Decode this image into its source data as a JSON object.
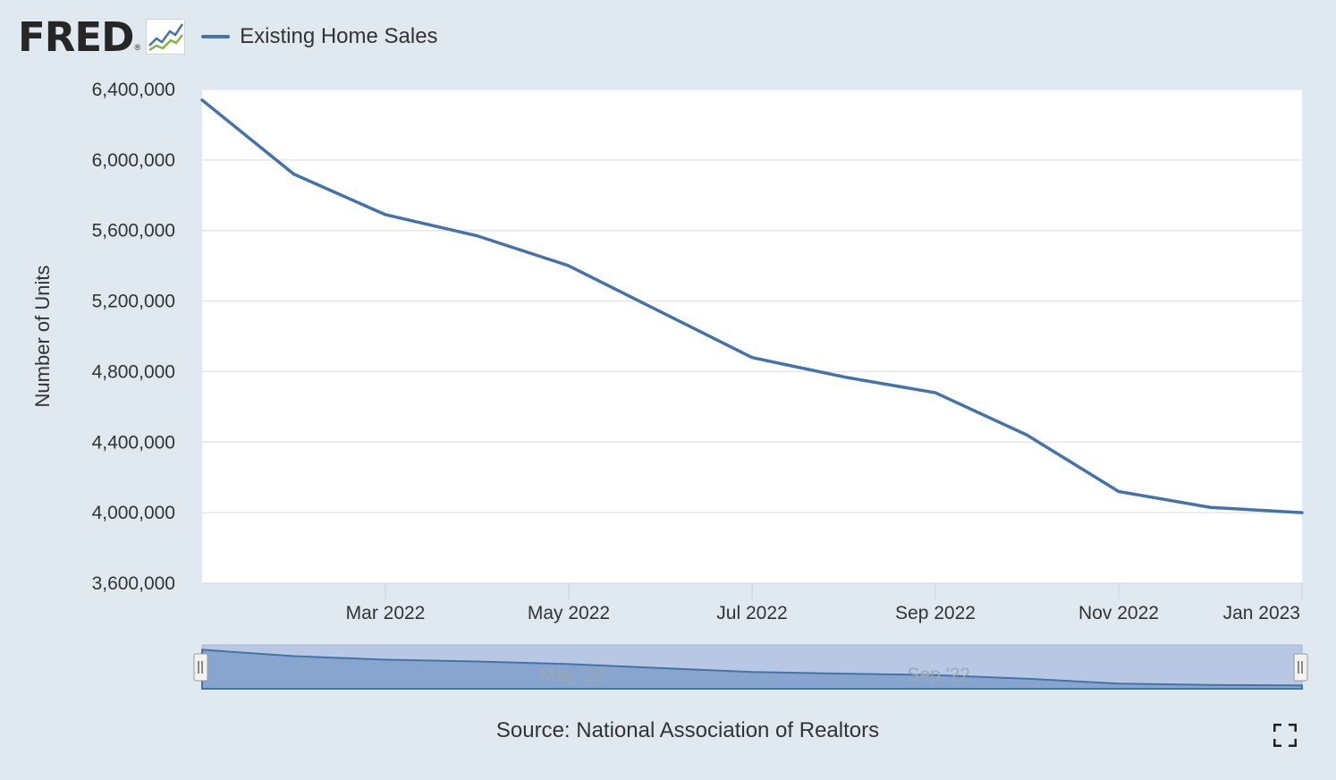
{
  "logo": {
    "text": "FRED",
    "reg": "®"
  },
  "icons": {
    "logo_graph": "line-graph-icon",
    "fullscreen": "fullscreen-icon"
  },
  "colors": {
    "series": "#4572a7",
    "background": "#e1e9f0",
    "plot_bg": "#ffffff",
    "navigator_fill": "#b8c8e4",
    "navigator_area": "#87a5cf"
  },
  "source": "Source: National Association of Realtors",
  "chart_data": {
    "type": "line",
    "title": "Existing Home Sales",
    "xlabel": "",
    "ylabel": "Number of Units",
    "ylim": [
      3600000,
      6400000
    ],
    "y_ticks": [
      3600000,
      4000000,
      4400000,
      4800000,
      5200000,
      5600000,
      6000000,
      6400000
    ],
    "y_tick_labels": [
      "3,600,000",
      "4,000,000",
      "4,400,000",
      "4,800,000",
      "5,200,000",
      "5,600,000",
      "6,000,000",
      "6,400,000"
    ],
    "x_tick_labels": [
      "Mar 2022",
      "May 2022",
      "Jul 2022",
      "Sep 2022",
      "Nov 2022",
      "Jan 2023"
    ],
    "x_tick_months": [
      2,
      4,
      6,
      8,
      10,
      12
    ],
    "navigator_labels": [
      "May '22",
      "Sep '22"
    ],
    "navigator_label_months": [
      3.5,
      7.5
    ],
    "grid": true,
    "series": [
      {
        "name": "Existing Home Sales",
        "months": [
          "2022-01",
          "2022-02",
          "2022-03",
          "2022-04",
          "2022-05",
          "2022-06",
          "2022-07",
          "2022-08",
          "2022-09",
          "2022-10",
          "2022-11",
          "2022-12",
          "2023-01"
        ],
        "values": [
          6340000,
          5920000,
          5690000,
          5570000,
          5400000,
          5140000,
          4880000,
          4770000,
          4680000,
          4440000,
          4120000,
          4030000,
          4000000
        ]
      }
    ]
  }
}
